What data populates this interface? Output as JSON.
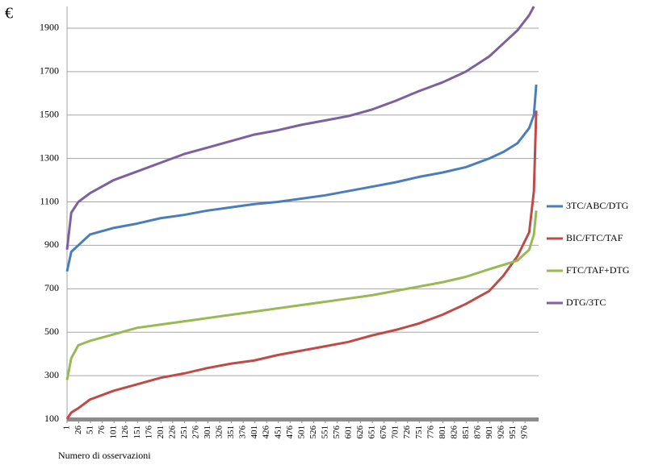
{
  "chart_data": {
    "type": "line",
    "y_label": "€",
    "x_label": "Numero di osservazioni",
    "x": [
      1,
      10,
      25,
      50,
      100,
      150,
      200,
      250,
      300,
      350,
      400,
      450,
      500,
      550,
      600,
      650,
      700,
      750,
      800,
      850,
      900,
      930,
      960,
      985,
      995,
      1000
    ],
    "xlim": [
      1,
      1005
    ],
    "xticks": [
      1,
      26,
      51,
      76,
      101,
      126,
      151,
      176,
      201,
      226,
      251,
      276,
      301,
      326,
      351,
      376,
      401,
      426,
      451,
      476,
      501,
      526,
      551,
      576,
      601,
      626,
      651,
      676,
      701,
      726,
      751,
      776,
      801,
      826,
      851,
      876,
      901,
      926,
      951,
      976
    ],
    "ylim": [
      100,
      2000
    ],
    "yticks": [
      100,
      300,
      500,
      700,
      900,
      1100,
      1300,
      1500,
      1700,
      1900
    ],
    "grid": true,
    "series": [
      {
        "name": "3TC/ABC/DTG",
        "color": "#4a7ebb",
        "values": [
          780,
          870,
          900,
          950,
          980,
          1000,
          1025,
          1040,
          1060,
          1075,
          1090,
          1100,
          1115,
          1130,
          1150,
          1170,
          1190,
          1215,
          1235,
          1260,
          1300,
          1330,
          1370,
          1440,
          1500,
          1640
        ]
      },
      {
        "name": "BIC/FTC/TAF",
        "color": "#be4b48",
        "values": [
          100,
          130,
          150,
          190,
          230,
          260,
          290,
          310,
          335,
          355,
          370,
          395,
          415,
          435,
          455,
          485,
          510,
          540,
          580,
          630,
          690,
          760,
          850,
          960,
          1150,
          1520
        ]
      },
      {
        "name": "FTC/TAF+DTG",
        "color": "#98b954",
        "values": [
          280,
          380,
          440,
          460,
          490,
          520,
          535,
          550,
          565,
          580,
          595,
          610,
          625,
          640,
          655,
          670,
          690,
          710,
          730,
          755,
          790,
          810,
          830,
          880,
          950,
          1060
        ]
      },
      {
        "name": "DTG/3TC",
        "color": "#7d60a0",
        "values": [
          880,
          1050,
          1100,
          1140,
          1200,
          1240,
          1280,
          1320,
          1350,
          1380,
          1410,
          1430,
          1455,
          1475,
          1495,
          1525,
          1565,
          1610,
          1650,
          1700,
          1770,
          1830,
          1890,
          1960,
          2000,
          null
        ]
      }
    ]
  }
}
